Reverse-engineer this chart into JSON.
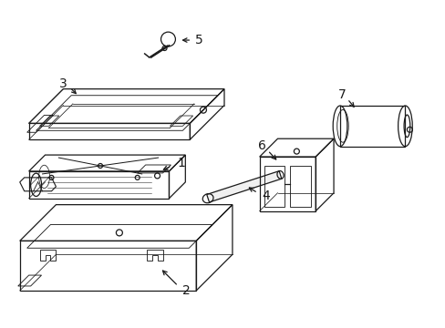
{
  "bg_color": "#ffffff",
  "line_color": "#1a1a1a",
  "line_width": 0.9,
  "label_fontsize": 10,
  "fig_width": 4.89,
  "fig_height": 3.6,
  "dpi": 100,
  "parts": {
    "part5": {
      "label": "5"
    },
    "part3": {
      "label": "3"
    },
    "part7": {
      "label": "7"
    },
    "part6": {
      "label": "6"
    },
    "part1": {
      "label": "1"
    },
    "part4": {
      "label": "4"
    },
    "part2": {
      "label": "2"
    }
  }
}
